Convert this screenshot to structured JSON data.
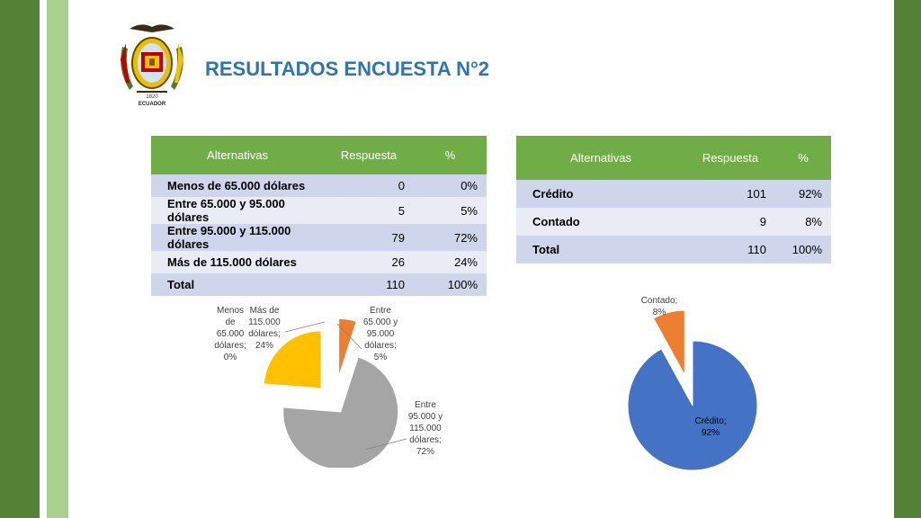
{
  "title": "RESULTADOS ENCUESTA N°2",
  "logo": {
    "caption_year": "1820",
    "caption_country": "ECUADOR"
  },
  "colors": {
    "dark_green": "#538135",
    "light_green": "#a9d18e",
    "header_green": "#70ad47",
    "title_blue": "#2e75b6"
  },
  "table1": {
    "headers": [
      "Alternativas",
      "Respuesta",
      "%"
    ],
    "rows": [
      [
        "Menos de 65.000 dólares",
        "0",
        "0%"
      ],
      [
        "Entre 65.000 y 95.000 dólares",
        "5",
        "5%"
      ],
      [
        "Entre 95.000 y 115.000 dólares",
        "79",
        "72%"
      ],
      [
        "Más de 115.000 dólares",
        "26",
        "24%"
      ],
      [
        "Total",
        "110",
        "100%"
      ]
    ]
  },
  "table2": {
    "headers": [
      "Alternativas",
      "Respuesta",
      "%"
    ],
    "rows": [
      [
        "Crédito",
        "101",
        "92%"
      ],
      [
        "Contado",
        "9",
        "8%"
      ],
      [
        "Total",
        "110",
        "100%"
      ]
    ]
  },
  "chart_data": [
    {
      "type": "pie",
      "categories": [
        "Menos de 65.000 dólares",
        "Entre 65.000 y 95.000 dólares",
        "Entre 95.000 y 115.000 dólares",
        "Más de 115.000 dólares"
      ],
      "values": [
        0,
        5,
        72,
        24
      ],
      "colors": [
        "#4472c4",
        "#ed7d31",
        "#a5a5a5",
        "#ffc000"
      ],
      "data_labels": [
        [
          "Menos",
          "de",
          "65.000",
          "dólares;",
          "0%"
        ],
        [
          "Entre",
          "65.000 y",
          "95.000",
          "dólares;",
          "5%"
        ],
        [
          "Entre",
          "95.000 y",
          "115.000",
          "dólares;",
          "72%"
        ],
        [
          "Más de",
          "115.000",
          "dólares;",
          "24%"
        ]
      ]
    },
    {
      "type": "pie",
      "categories": [
        "Crédito",
        "Contado"
      ],
      "values": [
        92,
        8
      ],
      "colors": [
        "#4472c4",
        "#ed7d31"
      ],
      "data_labels": [
        [
          "Crédito;",
          "92%"
        ],
        [
          "Contado;",
          "8%"
        ]
      ]
    }
  ]
}
